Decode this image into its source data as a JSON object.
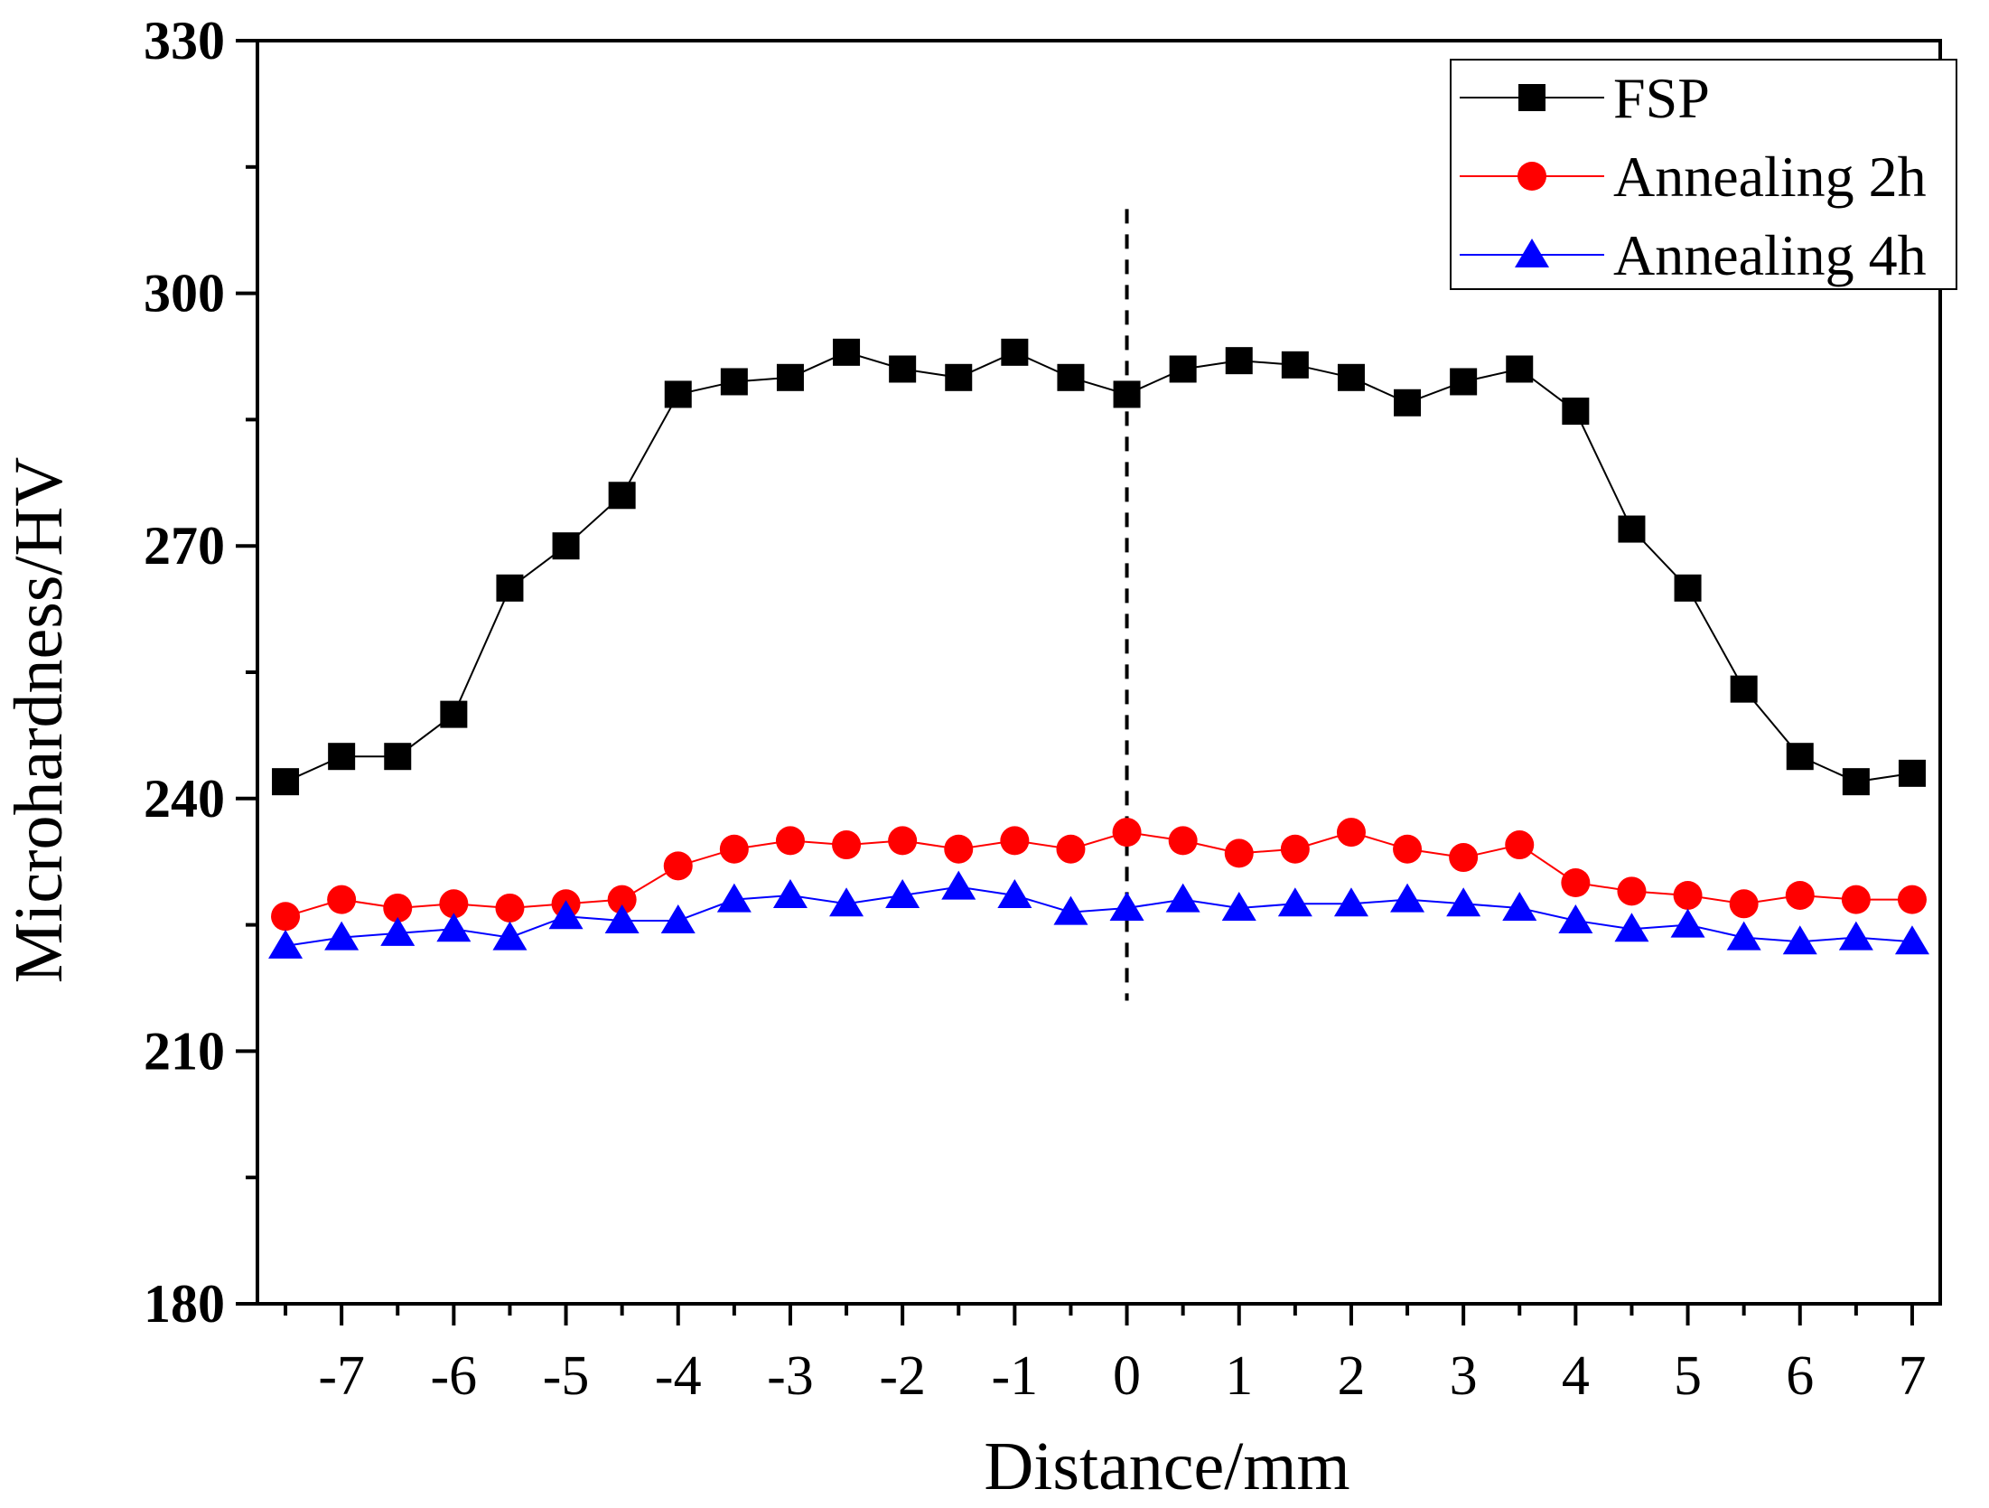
{
  "chart_data": {
    "type": "line",
    "title": "",
    "xlabel": "Distance/mm",
    "ylabel": "Microhardness/HV",
    "xlim": [
      -7.75,
      7.25
    ],
    "ylim": [
      180,
      330
    ],
    "x_ticks": [
      -7,
      -6,
      -5,
      -4,
      -3,
      -2,
      -1,
      0,
      1,
      2,
      3,
      4,
      5,
      6,
      7
    ],
    "x_tick_labels": [
      "-7",
      "-6",
      "-5",
      "-4",
      "-3",
      "-2",
      "-1",
      "0",
      "1",
      "2",
      "3",
      "4",
      "5",
      "6",
      "7"
    ],
    "y_ticks": [
      180,
      210,
      240,
      270,
      300,
      330
    ],
    "y_tick_labels": [
      "180",
      "210",
      "240",
      "270",
      "300",
      "330"
    ],
    "grid": false,
    "legend_position": "top-right",
    "reference_line": {
      "x": 0,
      "y_range": [
        216,
        310
      ],
      "style": "dashed"
    },
    "x": [
      -7.5,
      -7,
      -6.5,
      -6,
      -5.5,
      -5,
      -4.5,
      -4,
      -3.5,
      -3,
      -2.5,
      -2,
      -1.5,
      -1,
      -0.5,
      0,
      0.5,
      1,
      1.5,
      2,
      2.5,
      3,
      3.5,
      4,
      4.5,
      5,
      5.5,
      6,
      6.5,
      7
    ],
    "series": [
      {
        "name": "FSP",
        "color": "#000000",
        "marker": "square",
        "values": [
          242,
          245,
          245,
          250,
          265,
          270,
          276,
          288,
          289.5,
          290,
          293,
          291,
          290,
          293,
          290,
          288,
          291,
          292,
          291.5,
          290,
          287,
          289.5,
          291,
          286,
          272,
          265,
          253,
          245,
          242,
          243
        ]
      },
      {
        "name": "Annealing 2h",
        "color": "#ff0000",
        "marker": "circle",
        "values": [
          226,
          228,
          227,
          227.5,
          227,
          227.5,
          228,
          232,
          234,
          235,
          234.5,
          235,
          234,
          235,
          234,
          236,
          235,
          233.5,
          234,
          236,
          234,
          233,
          234.5,
          230,
          229,
          228.5,
          227.5,
          228.5,
          228,
          228
        ]
      },
      {
        "name": "Annealing 4h",
        "color": "#0000ff",
        "marker": "triangle",
        "values": [
          222.5,
          223.5,
          224,
          224.5,
          223.5,
          226,
          225.5,
          225.5,
          228,
          228.5,
          227.5,
          228.5,
          229.5,
          228.5,
          226.5,
          227,
          228,
          227,
          227.5,
          227.5,
          228,
          227.5,
          227,
          225.5,
          224.5,
          225,
          223.5,
          223,
          223.5,
          223
        ]
      }
    ]
  }
}
